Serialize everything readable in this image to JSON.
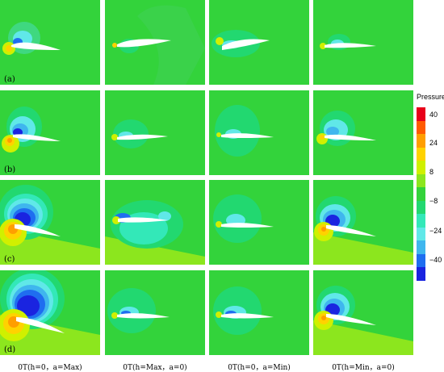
{
  "legend": {
    "title": "Pressure",
    "ticks": [
      "40",
      "24",
      "8",
      "−8",
      "−24",
      "−40"
    ],
    "colors": [
      "#e8001a",
      "#ff5a00",
      "#ff9e00",
      "#ffd200",
      "#d0f000",
      "#8ce61e",
      "#33d33b",
      "#22d870",
      "#33e8b8",
      "#60e8e8",
      "#3fb6ee",
      "#1f6ef0",
      "#1a24e0"
    ]
  },
  "row_labels": [
    "(a)",
    "(b)",
    "(c)",
    "(d)"
  ],
  "column_labels": [
    "0T(h=0，a=Max)",
    "0T(h=Max，a=0)",
    "0T(h=0，a=Min)",
    "0T(h=Min，a=0)"
  ],
  "colors": {
    "background": "#33d33b",
    "airfoil": "#ffffff",
    "suction_strong": "#1a24e0",
    "suction_mid": "#1f6ef0",
    "suction_weak": "#60e8e8",
    "pressure_weak": "#d0f000",
    "pressure_mid": "#ffd200",
    "pressure_strong": "#ff9e00"
  }
}
